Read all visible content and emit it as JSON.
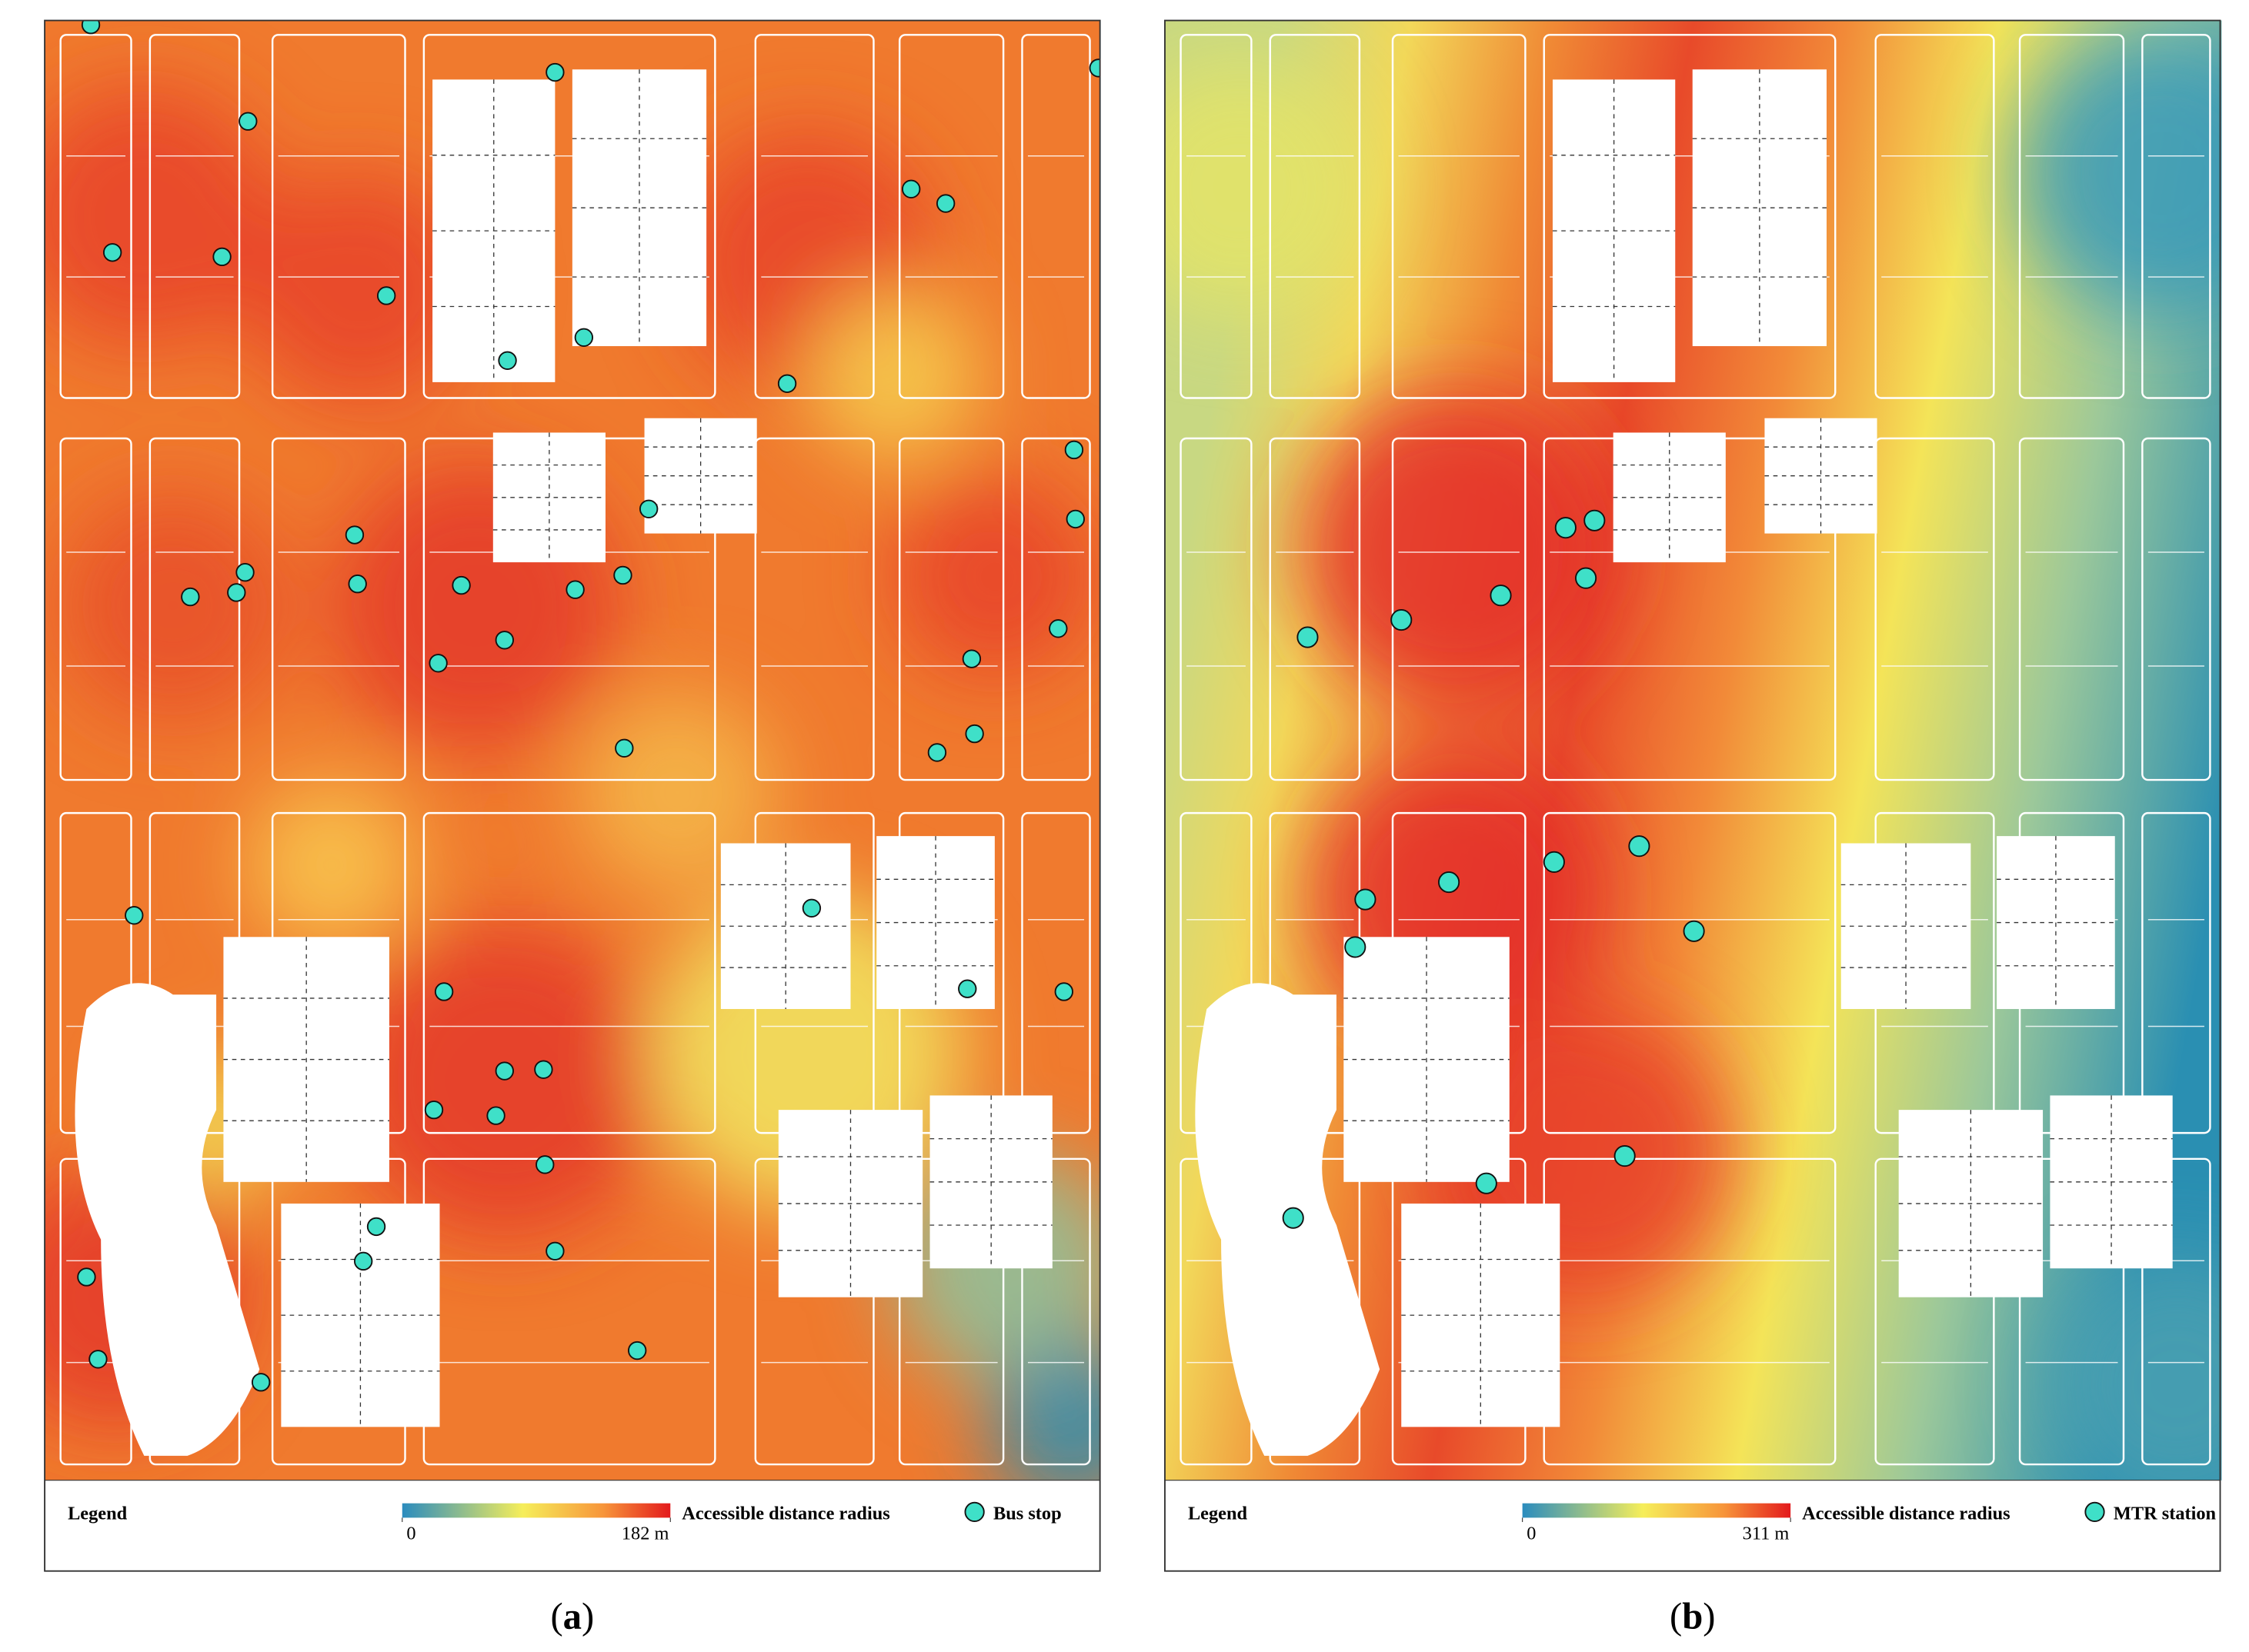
{
  "panels": [
    {
      "legend_title": "Legend",
      "scale_label": "Accessible distance radius",
      "scale_range": [
        0,
        182
      ],
      "scale_ticks": [
        0,
        {
          "value": 182,
          "label": "182 m"
        }
      ],
      "point_label": "Bus stop",
      "caption": {
        "open": "(",
        "letter": "a",
        "close": ")"
      }
    },
    {
      "legend_title": "Legend",
      "scale_label": "Accessible distance radius",
      "scale_range": [
        0,
        311
      ],
      "scale_ticks": [
        0,
        {
          "value": 311,
          "label": "311 m"
        }
      ],
      "point_label": "MTR station",
      "caption": {
        "open": "(",
        "letter": "b",
        "close": ")"
      }
    }
  ]
}
